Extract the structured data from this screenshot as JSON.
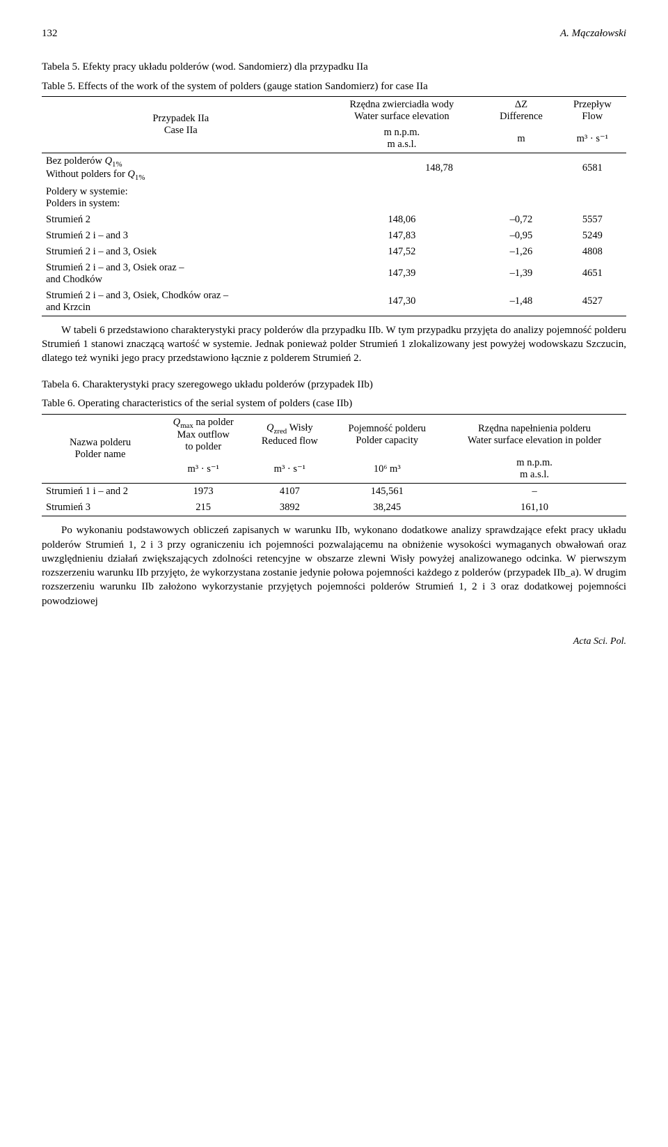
{
  "header": {
    "page_num": "132",
    "author": "A. Mączałowski"
  },
  "table5": {
    "caption_pl": "Tabela 5. Efekty pracy układu polderów (wod. Sandomierz) dla przypadku IIa",
    "caption_en": "Table 5.  Effects of the work of the system of polders (gauge station Sandomierz) for case IIa",
    "col1_pl": "Przypadek IIa",
    "col1_en": "Case IIa",
    "col2_pl": "Rzędna zwierciadła wody",
    "col2_en": "Water surface elevation",
    "col2_unit1": "m n.p.m.",
    "col2_unit2": "m a.s.l.",
    "col3_pl": "ΔZ",
    "col3_en": "Difference",
    "col3_unit": "m",
    "col4_pl": "Przepływ",
    "col4_en": "Flow",
    "col4_unit": "m³ · s⁻¹",
    "rows": [
      {
        "label_html": "Bez polderów <span class='ital'>Q</span><span class='sub'>1%</span><br>Without polders for <span class='ital'>Q</span><span class='sub'>1%</span>",
        "v": "148,78",
        "dz": "",
        "flow": "6581"
      },
      {
        "label_html": "Poldery w systemie:<br>Polders in system:",
        "v": "",
        "dz": "",
        "flow": ""
      },
      {
        "label_html": "Strumień 2",
        "v": "148,06",
        "dz": "–0,72",
        "flow": "5557"
      },
      {
        "label_html": "Strumień 2 i – and 3",
        "v": "147,83",
        "dz": "–0,95",
        "flow": "5249"
      },
      {
        "label_html": "Strumień 2 i – and 3, Osiek",
        "v": "147,52",
        "dz": "–1,26",
        "flow": "4808"
      },
      {
        "label_html": "Strumień 2 i – and 3, Osiek oraz –<br>and Chodków",
        "v": "147,39",
        "dz": "–1,39",
        "flow": "4651"
      },
      {
        "label_html": "Strumień 2 i – and 3, Osiek, Chodków oraz –<br>and Krzcin",
        "v": "147,30",
        "dz": "–1,48",
        "flow": "4527"
      }
    ]
  },
  "para1": "W tabeli 6 przedstawiono charakterystyki pracy polderów dla przypadku IIb. W tym przypadku przyjęta do analizy pojemność polderu Strumień 1 stanowi znaczącą wartość w systemie. Jednak ponieważ polder Strumień 1 zlokalizowany jest powyżej wodowskazu Szczucin, dlatego też wyniki jego pracy przedstawiono łącznie z polderem Strumień 2.",
  "table6": {
    "caption_pl": "Tabela 6. Charakterystyki pracy szeregowego układu polderów (przypadek IIb)",
    "caption_en": "Table 6.  Operating characteristics of the serial system of polders (case IIb)",
    "col1_pl": "Nazwa polderu",
    "col1_en": "Polder name",
    "col2_html": "<span class='ital'>Q</span><span class='sub'>max</span> na polder<br>Max outflow<br>to polder",
    "col2_unit": "m³ · s⁻¹",
    "col3_html": "<span class='ital'>Q</span><span class='sub'>zred</span> Wisły<br>Reduced flow",
    "col3_unit": "m³ · s⁻¹",
    "col4_pl": "Pojemność polderu",
    "col4_en": "Polder capacity",
    "col4_unit": "10⁶ m³",
    "col5_pl": "Rzędna napełnienia polderu",
    "col5_en": "Water surface elevation in polder",
    "col5_unit1": "m n.p.m.",
    "col5_unit2": "m a.s.l.",
    "rows": [
      {
        "label": "Strumień 1 i – and 2",
        "qmax": "1973",
        "qred": "4107",
        "cap": "145,561",
        "elev": "–"
      },
      {
        "label": "Strumień 3",
        "qmax": "215",
        "qred": "3892",
        "cap": "38,245",
        "elev": "161,10"
      }
    ]
  },
  "para2": "Po wykonaniu podstawowych obliczeń zapisanych w warunku IIb, wykonano dodatkowe analizy sprawdzające efekt pracy układu polderów Strumień 1, 2 i 3 przy ograniczeniu ich pojemności pozwalającemu na obniżenie wysokości wymaganych obwałowań oraz uwzględnieniu działań zwiększających zdolności retencyjne w obszarze zlewni Wisły powyżej analizowanego odcinka. W pierwszym rozszerzeniu warunku IIb przyjęto, że wykorzystana zostanie jedynie połowa pojemności każdego z polderów (przypadek IIb_a). W drugim rozszerzeniu warunku IIb założono wykorzystanie przyjętych pojemności polderów Strumień 1, 2 i 3 oraz dodatkowej pojemności powodziowej",
  "footer": "Acta Sci. Pol."
}
